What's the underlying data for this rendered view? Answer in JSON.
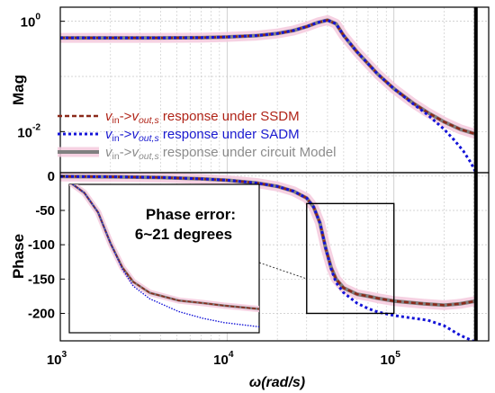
{
  "colors": {
    "circuit": "#808080",
    "ssdm": "#8b2a1a",
    "sadm": "#1414d8",
    "highlight": "#f4c9dd",
    "grid": "#c6c6c6",
    "axis": "#000000",
    "ssdm_text": "#b02418",
    "sadm_text": "#1a1ad0",
    "circuit_text": "#8c8c8c"
  },
  "chart_data": [
    {
      "type": "line",
      "id": "magnitude",
      "ylabel": "Mag",
      "xlabel": "",
      "xscale": "log",
      "yscale": "log",
      "xlim": [
        1000,
        370000
      ],
      "ylim": [
        0.0018,
        1.8
      ],
      "grid": true,
      "xticks": [
        {
          "value": 1000,
          "label": "10",
          "exp": "3"
        },
        {
          "value": 10000,
          "label": "10",
          "exp": "4"
        },
        {
          "value": 100000,
          "label": "10",
          "exp": "5"
        }
      ],
      "yticks": [
        {
          "value": 1,
          "label": "10",
          "exp": "0"
        },
        {
          "value": 0.01,
          "label": "10",
          "exp": "-2"
        }
      ],
      "vertical_line_x": 310000,
      "legend_position": "bottom-left",
      "series": [
        {
          "key": "circuit",
          "legend_main": "v",
          "legend_parts": [
            "in",
            "->v",
            "out,s",
            " response under circuit Model"
          ],
          "x": [
            1000,
            2000,
            4000,
            7000,
            10000,
            15000,
            20000,
            25000,
            30000,
            35000,
            40000,
            45000,
            50000,
            60000,
            70000,
            80000,
            100000,
            130000,
            160000,
            200000,
            250000,
            310000
          ],
          "y": [
            0.5,
            0.5,
            0.5,
            0.505,
            0.52,
            0.55,
            0.6,
            0.68,
            0.8,
            0.95,
            1.05,
            0.9,
            0.55,
            0.28,
            0.17,
            0.11,
            0.06,
            0.033,
            0.022,
            0.015,
            0.011,
            0.009
          ]
        },
        {
          "key": "ssdm",
          "legend_main": "v",
          "legend_parts": [
            "in",
            "->v",
            "out,s",
            " response under SSDM"
          ],
          "x": [
            1000,
            2000,
            4000,
            7000,
            10000,
            15000,
            20000,
            25000,
            30000,
            35000,
            40000,
            45000,
            50000,
            60000,
            70000,
            80000,
            100000,
            130000,
            160000,
            200000,
            250000,
            310000
          ],
          "y": [
            0.5,
            0.5,
            0.5,
            0.505,
            0.52,
            0.55,
            0.6,
            0.68,
            0.8,
            0.95,
            1.05,
            0.9,
            0.55,
            0.28,
            0.17,
            0.11,
            0.06,
            0.033,
            0.022,
            0.015,
            0.011,
            0.009
          ]
        },
        {
          "key": "sadm",
          "legend_main": "v",
          "legend_parts": [
            "in",
            "->v",
            "out,s",
            " response under SADM"
          ],
          "x": [
            1000,
            2000,
            4000,
            7000,
            10000,
            15000,
            20000,
            25000,
            30000,
            35000,
            40000,
            45000,
            50000,
            60000,
            70000,
            80000,
            100000,
            130000,
            160000,
            200000,
            230000,
            260000,
            290000,
            310000
          ],
          "y": [
            0.5,
            0.5,
            0.5,
            0.505,
            0.52,
            0.55,
            0.6,
            0.68,
            0.8,
            0.95,
            1.05,
            0.9,
            0.55,
            0.28,
            0.17,
            0.11,
            0.06,
            0.032,
            0.02,
            0.011,
            0.007,
            0.0045,
            0.0027,
            0.0018
          ]
        }
      ]
    },
    {
      "type": "line",
      "id": "phase",
      "ylabel": "Phase",
      "xlabel": "ω(rad/s)",
      "xscale": "log",
      "xlim": [
        1000,
        370000
      ],
      "ylim": [
        -240,
        5
      ],
      "grid": true,
      "xticks": [
        {
          "value": 1000,
          "label": "10",
          "exp": "3"
        },
        {
          "value": 10000,
          "label": "10",
          "exp": "4"
        },
        {
          "value": 100000,
          "label": "10",
          "exp": "5"
        }
      ],
      "yticks": [
        {
          "value": 0,
          "label": "0"
        },
        {
          "value": -50,
          "label": "-50"
        },
        {
          "value": -100,
          "label": "-100"
        },
        {
          "value": -150,
          "label": "-150"
        },
        {
          "value": -200,
          "label": "-200"
        }
      ],
      "vertical_line_x": 310000,
      "zoom_box": {
        "x": [
          30000,
          100000
        ],
        "y": [
          -200,
          -40
        ]
      },
      "annotation": {
        "line1": "Phase error:",
        "line2": "6~21 degrees"
      },
      "series": [
        {
          "key": "circuit",
          "x": [
            1000,
            2000,
            4000,
            7000,
            10000,
            15000,
            20000,
            25000,
            30000,
            33000,
            36000,
            39000,
            42000,
            45000,
            50000,
            60000,
            70000,
            80000,
            100000,
            150000,
            200000,
            250000,
            310000
          ],
          "y": [
            -0.5,
            -1,
            -2,
            -4,
            -6,
            -10,
            -15,
            -22,
            -32,
            -45,
            -68,
            -105,
            -133,
            -150,
            -163,
            -172,
            -175,
            -178,
            -182,
            -186,
            -188,
            -186,
            -182
          ]
        },
        {
          "key": "ssdm",
          "x": [
            1000,
            2000,
            4000,
            7000,
            10000,
            15000,
            20000,
            25000,
            30000,
            33000,
            36000,
            39000,
            42000,
            45000,
            50000,
            60000,
            70000,
            80000,
            100000,
            150000,
            200000,
            250000,
            310000
          ],
          "y": [
            -0.5,
            -1,
            -2,
            -4,
            -6,
            -10,
            -15,
            -22,
            -32,
            -45,
            -68,
            -105,
            -133,
            -150,
            -163,
            -172,
            -175,
            -178,
            -182,
            -186,
            -188,
            -186,
            -182
          ]
        },
        {
          "key": "sadm",
          "x": [
            1000,
            2000,
            4000,
            7000,
            10000,
            15000,
            20000,
            25000,
            30000,
            33000,
            36000,
            39000,
            42000,
            45000,
            50000,
            60000,
            70000,
            80000,
            100000,
            130000,
            160000,
            200000,
            250000,
            310000
          ],
          "y": [
            -0.5,
            -1,
            -2,
            -4,
            -6,
            -10,
            -15,
            -22,
            -32,
            -45,
            -68,
            -105,
            -135,
            -155,
            -170,
            -185,
            -193,
            -198,
            -203,
            -207,
            -210,
            -218,
            -232,
            -242
          ]
        }
      ]
    }
  ]
}
